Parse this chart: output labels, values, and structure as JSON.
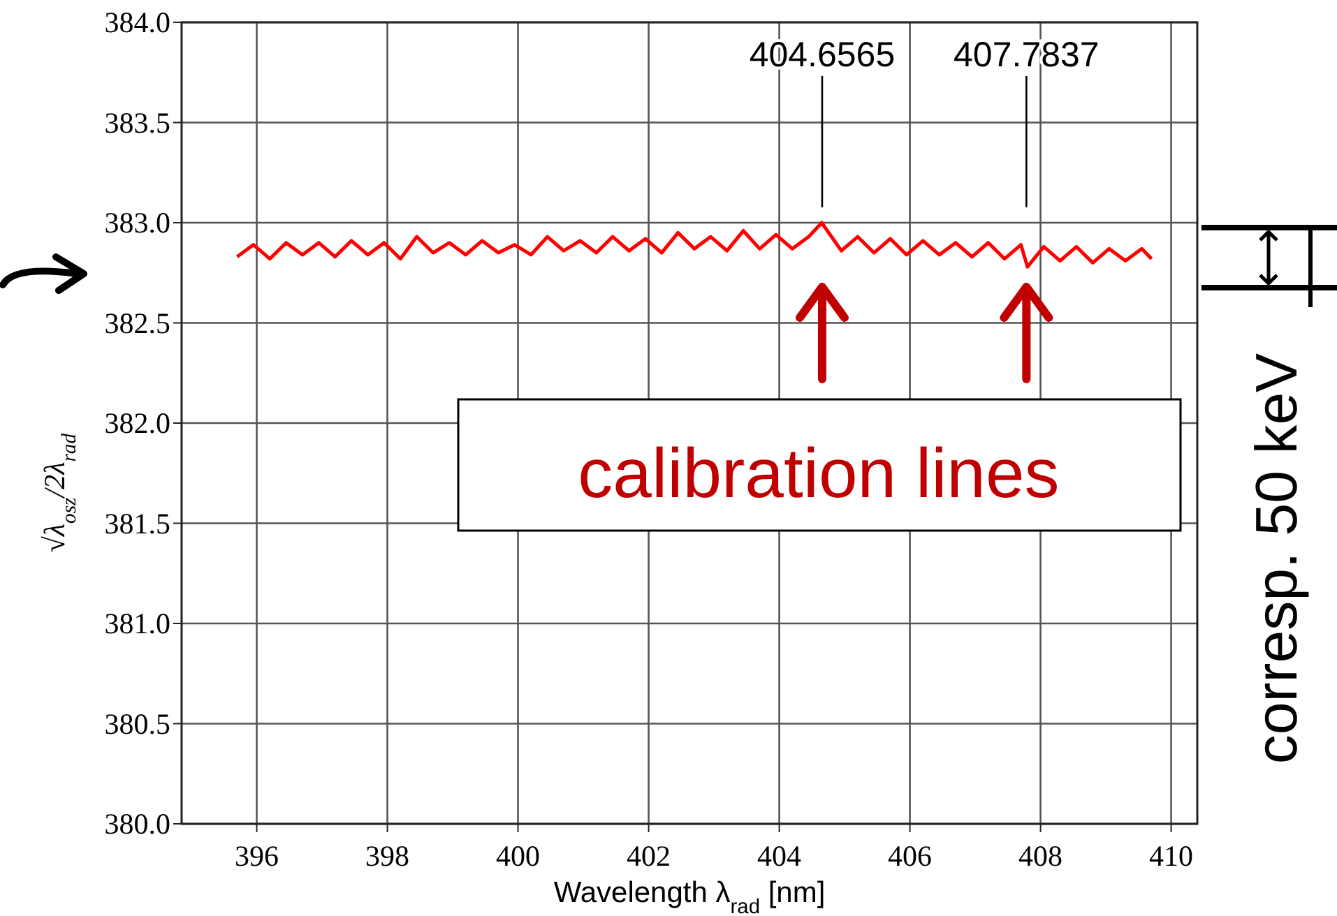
{
  "chart_data": {
    "type": "line",
    "xlabel": "Wavelength  λ$_{rad}$ [nm]",
    "ylabel": "√λ$_{osz}$/2λ$_{rad}$",
    "xlim": [
      394.85,
      410.4
    ],
    "ylim": [
      380,
      384
    ],
    "xticks": [
      396,
      398,
      400,
      402,
      404,
      406,
      408,
      410
    ],
    "yticks": [
      {
        "value": 380,
        "label": "380.0"
      },
      {
        "value": 380.5,
        "label": "380.5"
      },
      {
        "value": 381,
        "label": "381.0"
      },
      {
        "value": 381.5,
        "label": "381.5"
      },
      {
        "value": 382,
        "label": "382.0"
      },
      {
        "value": 382.5,
        "label": "382.5"
      },
      {
        "value": 383,
        "label": "383.0"
      },
      {
        "value": 383.5,
        "label": "383.5"
      },
      {
        "value": 384,
        "label": "384.0"
      }
    ],
    "grid": true,
    "marker": "none",
    "line_style": "solid",
    "ref_lines": [
      {
        "axis": "x",
        "value": 404.6565,
        "label": "404.6565"
      },
      {
        "axis": "x",
        "value": 407.7837,
        "label": "407.7837"
      }
    ],
    "series": [
      {
        "color": "#ff0000",
        "x": [
          395.7,
          395.95,
          396.2,
          396.45,
          396.7,
          396.95,
          397.2,
          397.45,
          397.7,
          397.95,
          398.2,
          398.45,
          398.7,
          398.95,
          399.2,
          399.45,
          399.7,
          399.95,
          400.2,
          400.45,
          400.7,
          400.95,
          401.2,
          401.45,
          401.7,
          401.95,
          402.2,
          402.45,
          402.7,
          402.95,
          403.2,
          403.45,
          403.7,
          403.95,
          404.2,
          404.45,
          404.65,
          404.95,
          405.2,
          405.45,
          405.7,
          405.95,
          406.2,
          406.45,
          406.7,
          406.95,
          407.2,
          407.45,
          407.7,
          407.8,
          408.05,
          408.3,
          408.55,
          408.8,
          409.05,
          409.3,
          409.55,
          409.7
        ],
        "values": [
          382.83,
          382.89,
          382.82,
          382.9,
          382.84,
          382.9,
          382.83,
          382.91,
          382.84,
          382.9,
          382.82,
          382.93,
          382.85,
          382.9,
          382.84,
          382.91,
          382.85,
          382.89,
          382.84,
          382.93,
          382.86,
          382.91,
          382.85,
          382.93,
          382.86,
          382.92,
          382.85,
          382.95,
          382.87,
          382.93,
          382.86,
          382.96,
          382.87,
          382.94,
          382.87,
          382.93,
          383.0,
          382.86,
          382.93,
          382.85,
          382.92,
          382.84,
          382.91,
          382.84,
          382.9,
          382.83,
          382.9,
          382.82,
          382.89,
          382.78,
          382.88,
          382.81,
          382.88,
          382.8,
          382.87,
          382.81,
          382.87,
          382.82
        ]
      }
    ],
    "annotations": [
      "calibration lines",
      "corresp. 50 keV"
    ]
  }
}
